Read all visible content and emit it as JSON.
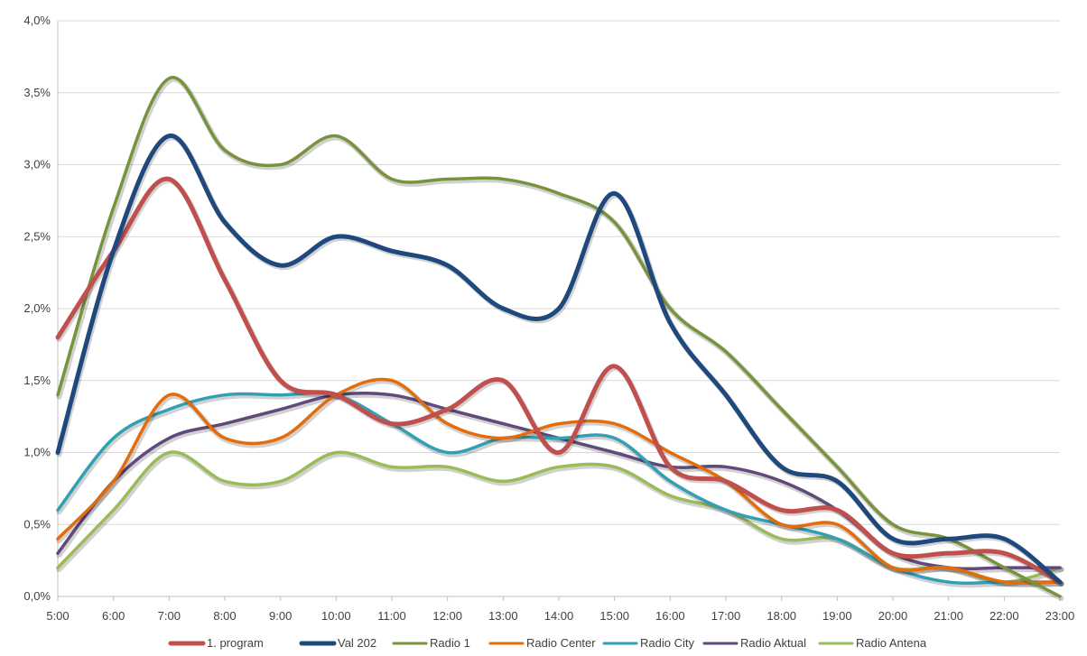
{
  "chart_data": {
    "type": "line",
    "smooth": true,
    "title": "",
    "xlabel": "",
    "ylabel": "",
    "x": [
      "5:00",
      "6:00",
      "7:00",
      "8:00",
      "9:00",
      "10:00",
      "11:00",
      "12:00",
      "13:00",
      "14:00",
      "15:00",
      "16:00",
      "17:00",
      "18:00",
      "19:00",
      "20:00",
      "21:00",
      "22:00",
      "23:00"
    ],
    "ylim": [
      0,
      4.0
    ],
    "yticks": [
      0,
      0.5,
      1.0,
      1.5,
      2.0,
      2.5,
      3.0,
      3.5,
      4.0
    ],
    "ytick_labels": [
      "0,0%",
      "0,5%",
      "1,0%",
      "1,5%",
      "2,0%",
      "2,5%",
      "3,0%",
      "3,5%",
      "4,0%"
    ],
    "grid": true,
    "legend_position": "bottom",
    "series": [
      {
        "name": "1. program",
        "color": "#c0504d",
        "values": [
          1.8,
          2.4,
          2.9,
          2.2,
          1.5,
          1.4,
          1.2,
          1.3,
          1.5,
          1.0,
          1.6,
          0.9,
          0.8,
          0.6,
          0.6,
          0.3,
          0.3,
          0.3,
          0.1
        ]
      },
      {
        "name": "Val 202",
        "color": "#1f497d",
        "values": [
          1.0,
          2.4,
          3.2,
          2.6,
          2.3,
          2.5,
          2.4,
          2.3,
          2.0,
          2.0,
          2.8,
          1.9,
          1.4,
          0.9,
          0.8,
          0.4,
          0.4,
          0.4,
          0.1
        ]
      },
      {
        "name": "Radio 1",
        "color": "#77933c",
        "values": [
          1.4,
          2.7,
          3.6,
          3.1,
          3.0,
          3.2,
          2.9,
          2.9,
          2.9,
          2.8,
          2.6,
          2.0,
          1.7,
          1.3,
          0.9,
          0.5,
          0.4,
          0.2,
          0.0
        ]
      },
      {
        "name": "Radio Center",
        "color": "#e46c0a",
        "values": [
          0.4,
          0.8,
          1.4,
          1.1,
          1.1,
          1.4,
          1.5,
          1.2,
          1.1,
          1.2,
          1.2,
          1.0,
          0.8,
          0.5,
          0.5,
          0.2,
          0.2,
          0.1,
          0.1
        ]
      },
      {
        "name": "Radio City",
        "color": "#31a0b5",
        "values": [
          0.6,
          1.1,
          1.3,
          1.4,
          1.4,
          1.4,
          1.2,
          1.0,
          1.1,
          1.1,
          1.1,
          0.8,
          0.6,
          0.5,
          0.4,
          0.2,
          0.1,
          0.1,
          0.1
        ]
      },
      {
        "name": "Radio Aktual",
        "color": "#604a7b",
        "values": [
          0.3,
          0.8,
          1.1,
          1.2,
          1.3,
          1.4,
          1.4,
          1.3,
          1.2,
          1.1,
          1.0,
          0.9,
          0.9,
          0.8,
          0.6,
          0.3,
          0.2,
          0.2,
          0.2
        ]
      },
      {
        "name": "Radio Antena",
        "color": "#9bbb59",
        "values": [
          0.2,
          0.6,
          1.0,
          0.8,
          0.8,
          1.0,
          0.9,
          0.9,
          0.8,
          0.9,
          0.9,
          0.7,
          0.6,
          0.4,
          0.4,
          0.2,
          0.2,
          0.1,
          0.2
        ]
      }
    ]
  }
}
